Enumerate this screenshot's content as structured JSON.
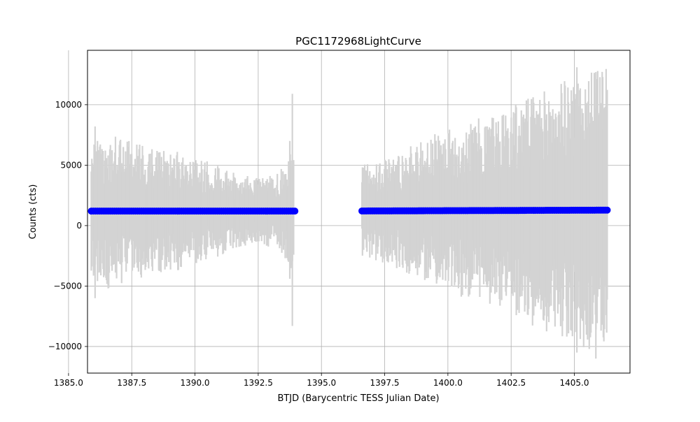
{
  "chart_data": {
    "type": "scatter",
    "title": "PGC1172968LightCurve",
    "xlabel": "BTJD (Barycentric TESS Julian Date)",
    "ylabel": "Counts (cts)",
    "xlim": [
      1385.75,
      1407.2
    ],
    "ylim": [
      -12200,
      14500
    ],
    "xticks": [
      1385.0,
      1387.5,
      1390.0,
      1392.5,
      1395.0,
      1397.5,
      1400.0,
      1402.5,
      1405.0
    ],
    "xtick_labels": [
      "1385.0",
      "1387.5",
      "1390.0",
      "1392.5",
      "1395.0",
      "1397.5",
      "1400.0",
      "1402.5",
      "1405.0"
    ],
    "yticks": [
      -10000,
      -5000,
      0,
      5000,
      10000
    ],
    "ytick_labels": [
      "−10000",
      "−5000",
      "0",
      "5000",
      "10000"
    ],
    "grid": true,
    "series": [
      {
        "role": "error-bars",
        "color": "#d3d3d3",
        "segments": [
          {
            "x_start": 1385.9,
            "x_end": 1393.9,
            "center": 1200,
            "half_width": [
              [
                1385.9,
                4800
              ],
              [
                1386.5,
                5600
              ],
              [
                1387.5,
                5000
              ],
              [
                1388.5,
                4500
              ],
              [
                1389.5,
                4200
              ],
              [
                1390.5,
                3600
              ],
              [
                1391.5,
                2800
              ],
              [
                1392.5,
                2400
              ],
              [
                1393.3,
                2700
              ],
              [
                1393.9,
                4500
              ]
            ]
          },
          {
            "x_start": 1396.6,
            "x_end": 1406.3,
            "center": 1250,
            "half_width": [
              [
                1396.6,
                3500
              ],
              [
                1397.5,
                3800
              ],
              [
                1398.5,
                4600
              ],
              [
                1399.5,
                5500
              ],
              [
                1400.5,
                6200
              ],
              [
                1401.5,
                6800
              ],
              [
                1402.5,
                7600
              ],
              [
                1403.5,
                8400
              ],
              [
                1404.5,
                9300
              ],
              [
                1405.5,
                10000
              ],
              [
                1406.3,
                10200
              ]
            ]
          }
        ],
        "spikes": [
          {
            "x": 1393.85,
            "low": -8300,
            "high": 10900
          },
          {
            "x": 1393.75,
            "low": -4400,
            "high": 7000
          },
          {
            "x": 1386.05,
            "low": -6000,
            "high": 8200
          },
          {
            "x": 1405.85,
            "low": -11000,
            "high": 12700
          },
          {
            "x": 1405.1,
            "low": -10500,
            "high": 13100
          }
        ]
      },
      {
        "role": "flux",
        "color": "#0000ff",
        "segments": [
          {
            "x_start": 1385.9,
            "x_end": 1393.95,
            "y_start": 1200,
            "y_end": 1200
          },
          {
            "x_start": 1396.6,
            "x_end": 1406.3,
            "y_start": 1210,
            "y_end": 1280
          }
        ]
      }
    ]
  }
}
